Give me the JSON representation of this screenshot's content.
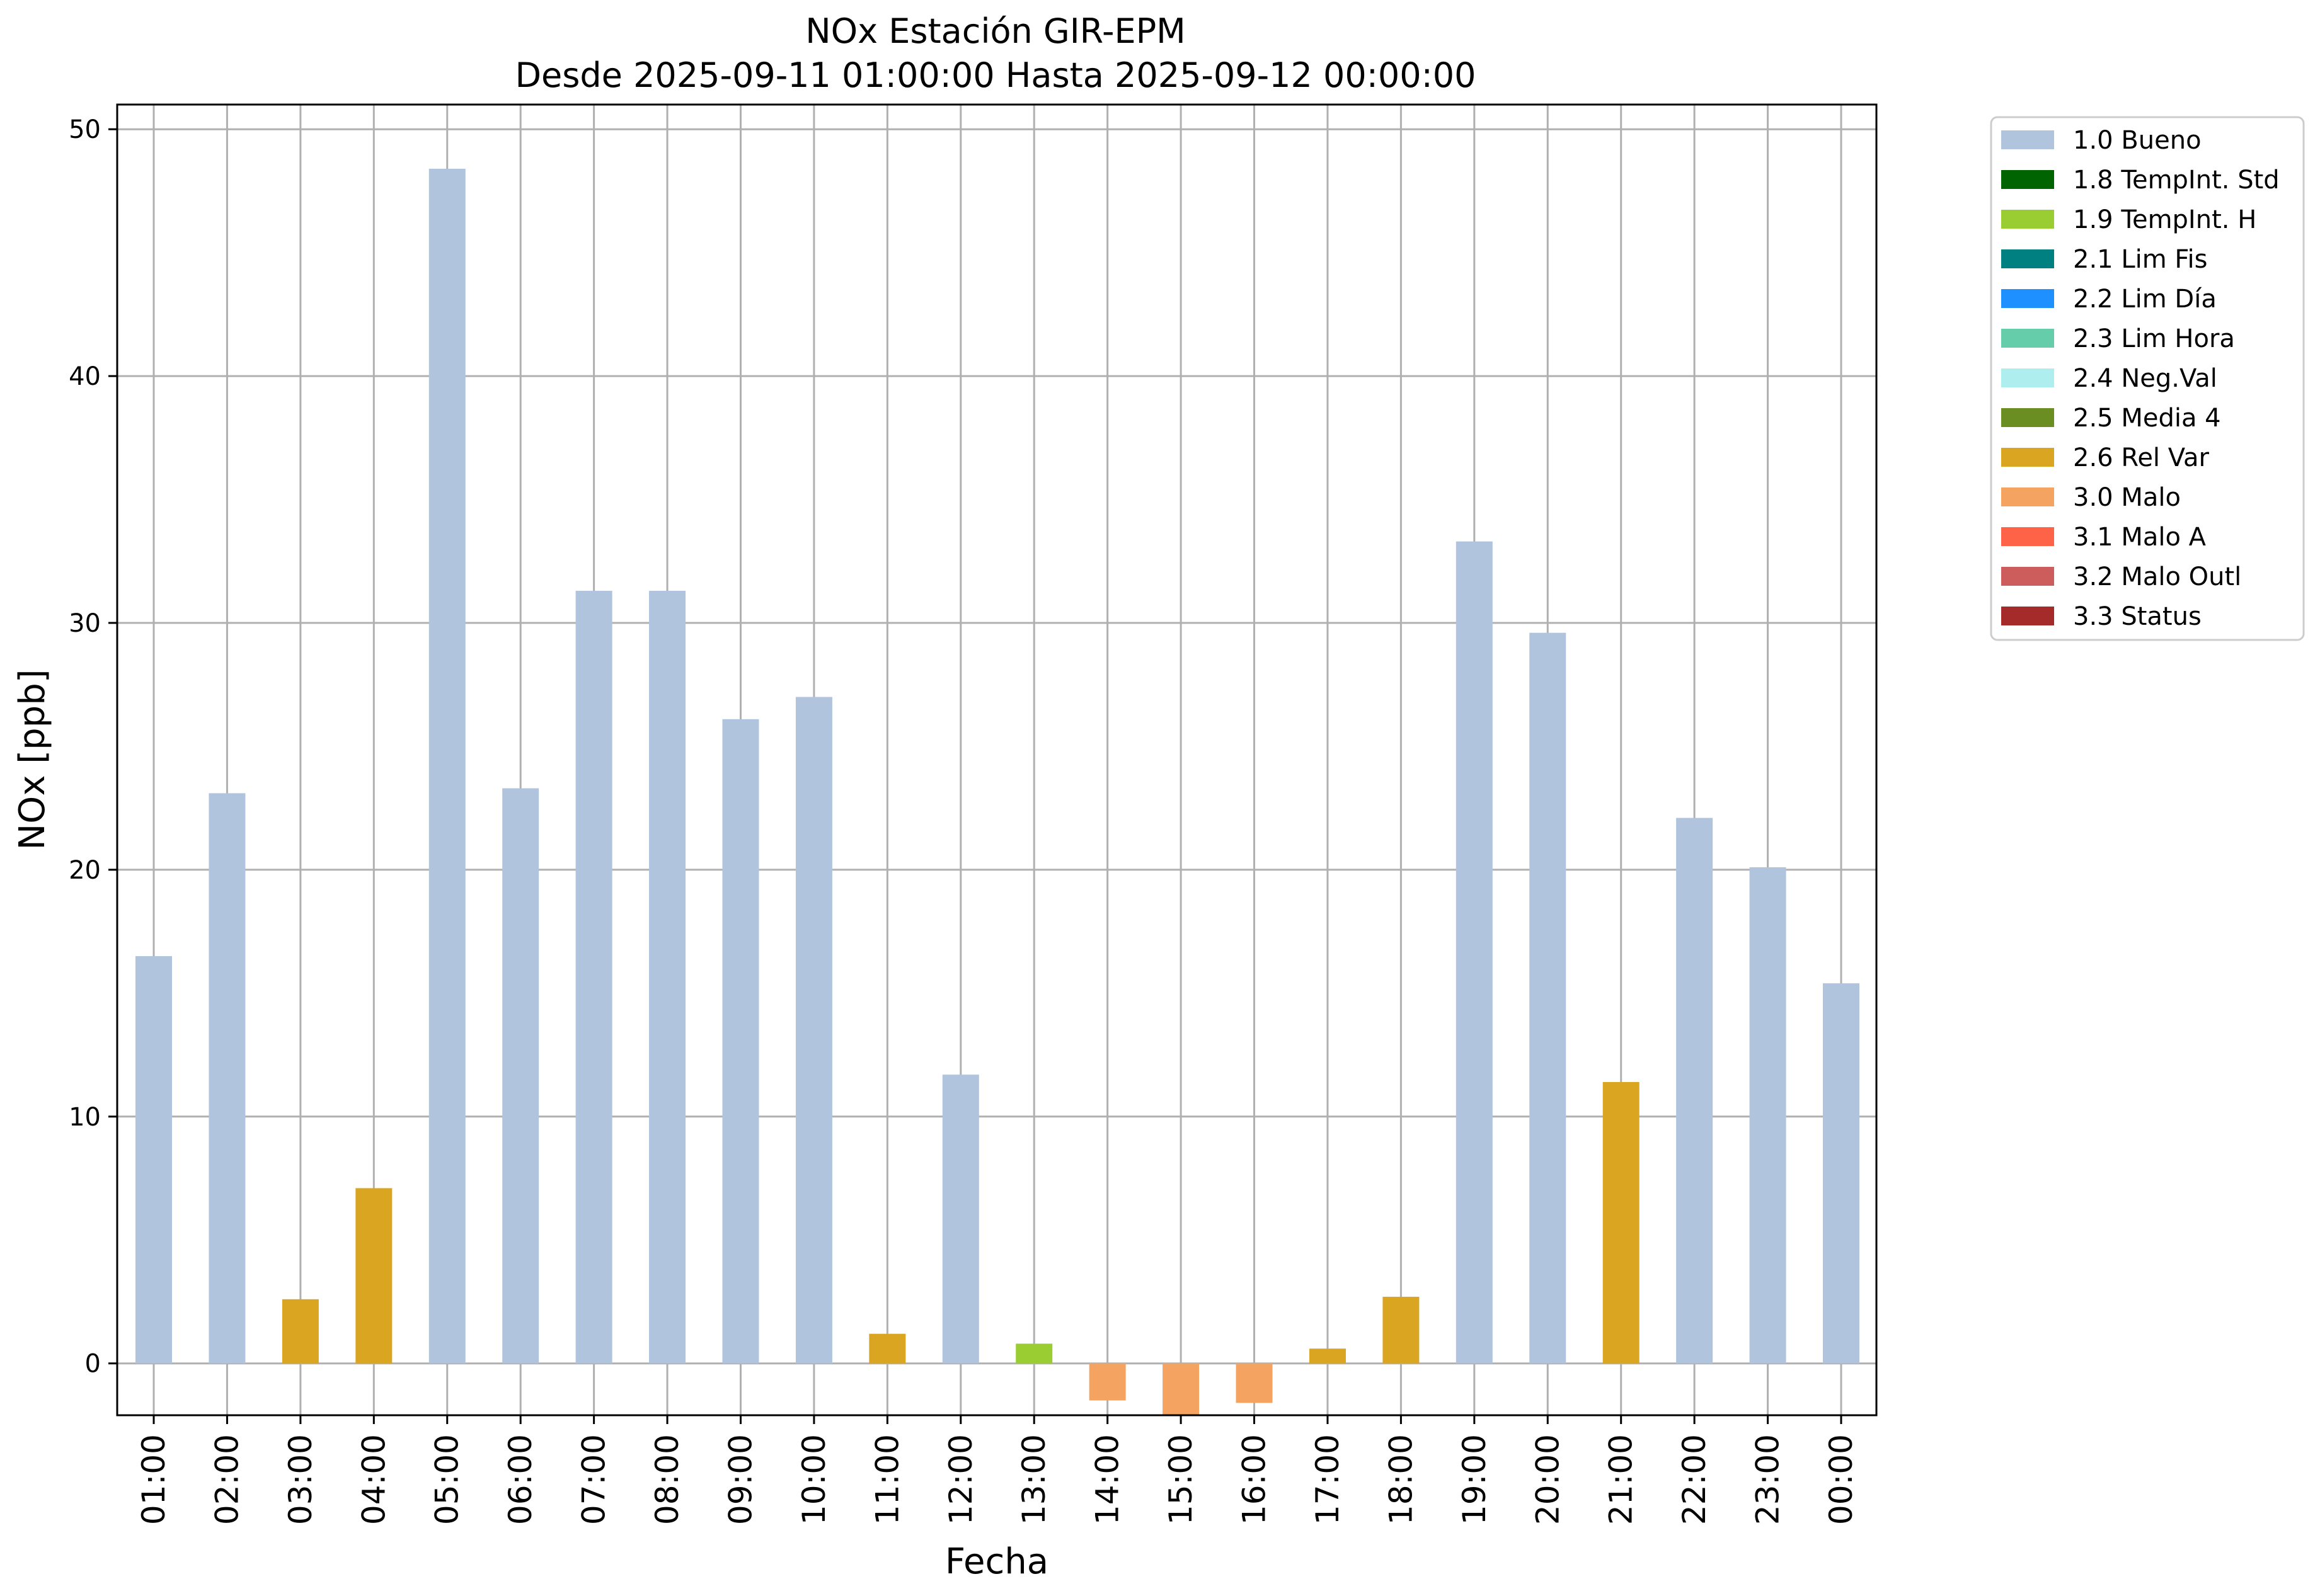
{
  "chart_data": {
    "type": "bar",
    "title": "NOx Estación GIR-EPM",
    "subtitle": "Desde 2025-09-11 01:00:00 Hasta 2025-09-12 00:00:00",
    "xlabel": "Fecha",
    "ylabel": "NOx [ppb]",
    "ylim": [
      -2.1,
      51
    ],
    "yticks": [
      0,
      10,
      20,
      30,
      40,
      50
    ],
    "grid": true,
    "legend_position": "outside-right",
    "categories": [
      "01:00",
      "02:00",
      "03:00",
      "04:00",
      "05:00",
      "06:00",
      "07:00",
      "08:00",
      "09:00",
      "10:00",
      "11:00",
      "12:00",
      "13:00",
      "14:00",
      "15:00",
      "16:00",
      "17:00",
      "18:00",
      "19:00",
      "20:00",
      "21:00",
      "22:00",
      "23:00",
      "00:00"
    ],
    "values": [
      16.5,
      23.1,
      2.6,
      7.1,
      48.4,
      23.3,
      31.3,
      31.3,
      26.1,
      27.0,
      1.2,
      11.7,
      0.8,
      -1.5,
      -2.1,
      -1.6,
      0.6,
      2.7,
      33.3,
      29.6,
      11.4,
      22.1,
      20.1,
      15.4
    ],
    "flags": [
      "1.0 Bueno",
      "1.0 Bueno",
      "2.6 Rel Var",
      "2.6 Rel Var",
      "1.0 Bueno",
      "1.0 Bueno",
      "1.0 Bueno",
      "1.0 Bueno",
      "1.0 Bueno",
      "1.0 Bueno",
      "2.6 Rel Var",
      "1.0 Bueno",
      "1.9 TempInt. H",
      "3.0 Malo",
      "3.0 Malo",
      "3.0 Malo",
      "2.6 Rel Var",
      "2.6 Rel Var",
      "1.0 Bueno",
      "1.0 Bueno",
      "2.6 Rel Var",
      "1.0 Bueno",
      "1.0 Bueno",
      "1.0 Bueno"
    ],
    "legend": [
      {
        "label": "1.0 Bueno",
        "color": "#B0C4DE"
      },
      {
        "label": "1.8 TempInt. Std",
        "color": "#006400"
      },
      {
        "label": "1.9 TempInt. H",
        "color": "#9ACD32"
      },
      {
        "label": "2.1 Lim Fis",
        "color": "#008080"
      },
      {
        "label": "2.2 Lim Día",
        "color": "#1E90FF"
      },
      {
        "label": "2.3 Lim Hora",
        "color": "#66CDAA"
      },
      {
        "label": "2.4 Neg.Val",
        "color": "#AFEEEE"
      },
      {
        "label": "2.5 Media 4",
        "color": "#6B8E23"
      },
      {
        "label": "2.6 Rel Var",
        "color": "#DAA520"
      },
      {
        "label": "3.0 Malo",
        "color": "#F4A460"
      },
      {
        "label": "3.1 Malo A",
        "color": "#FF6347"
      },
      {
        "label": "3.2 Malo Outl",
        "color": "#CD5C5C"
      },
      {
        "label": "3.3 Status",
        "color": "#A52A2A"
      }
    ]
  }
}
